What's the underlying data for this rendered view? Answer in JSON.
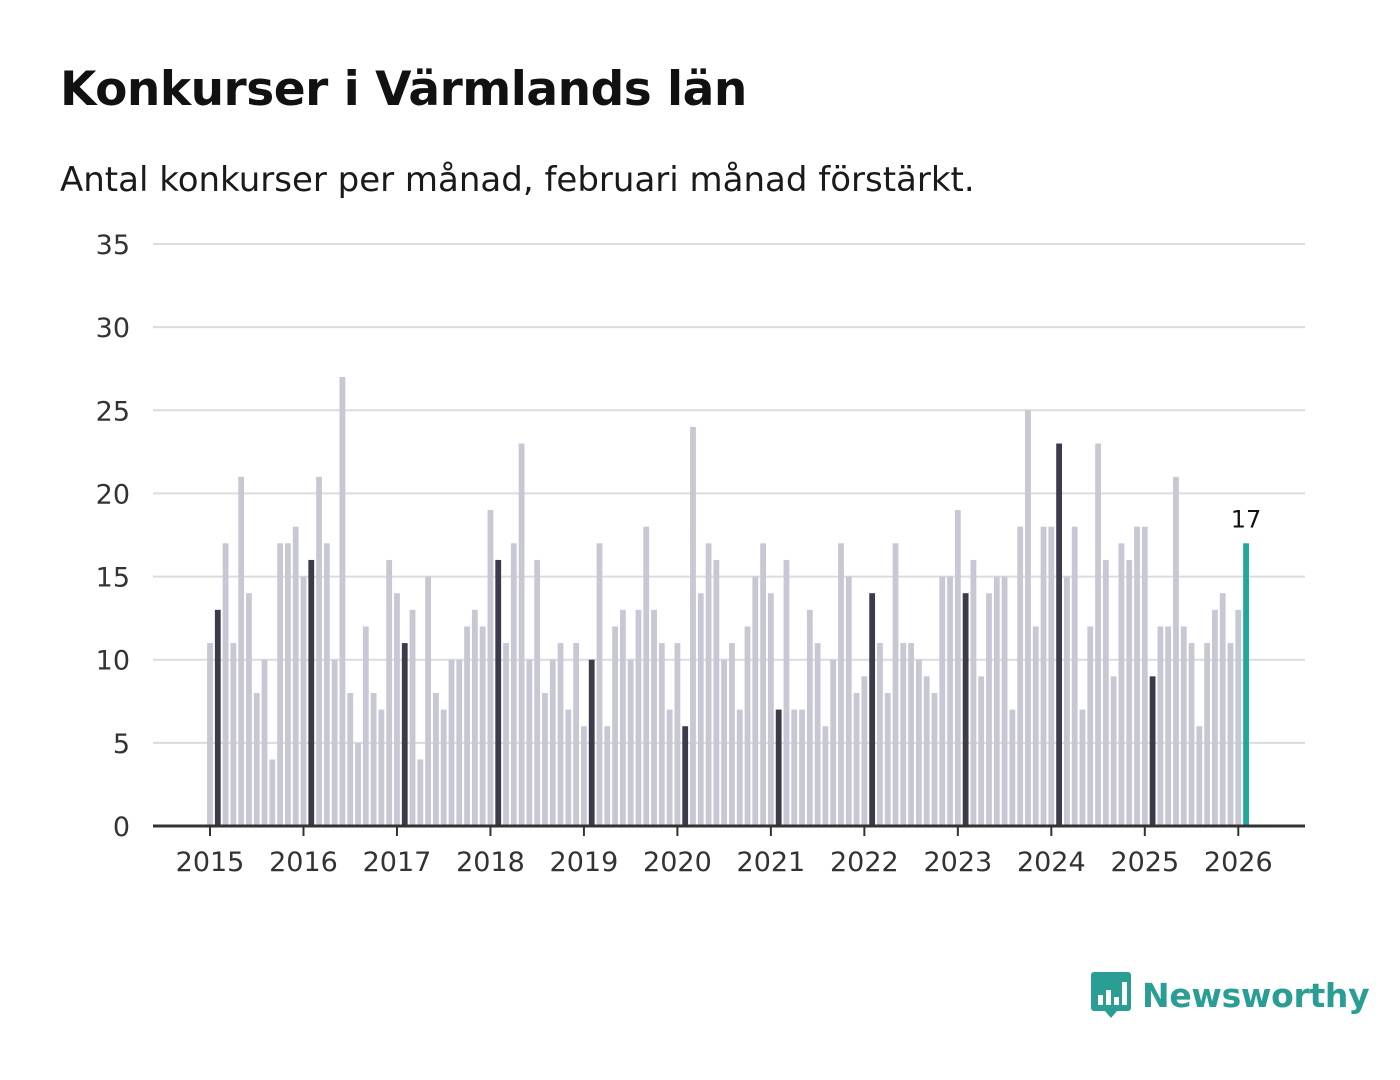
{
  "colors": {
    "bar_default": "#c8c7d4",
    "bar_highlight": "#3c3b4c",
    "bar_latest": "#20a89c",
    "grid": "#dcdcdc",
    "axis": "#333333",
    "brand": "#2a9d94"
  },
  "brand": {
    "name": "Newsworthy",
    "icon": "bar-chart-speech-bubble-icon"
  },
  "chart_data": {
    "type": "bar",
    "title": "Konkurser i Värmlands län",
    "subtitle": "Antal konkurser per månad, februari månad förstärkt.",
    "xlabel": "",
    "ylabel": "",
    "ylim": [
      0,
      35
    ],
    "yticks": [
      0,
      5,
      10,
      15,
      20,
      25,
      30,
      35
    ],
    "grid": true,
    "start": "2015-01",
    "highlight_month": 2,
    "year_labels": [
      "2015",
      "2016",
      "2017",
      "2018",
      "2019",
      "2020",
      "2021",
      "2022",
      "2023",
      "2024",
      "2025",
      "2026"
    ],
    "values": [
      11,
      13,
      17,
      11,
      21,
      14,
      8,
      10,
      4,
      17,
      17,
      18,
      15,
      16,
      21,
      17,
      10,
      27,
      8,
      5,
      12,
      8,
      7,
      16,
      14,
      11,
      13,
      4,
      15,
      8,
      7,
      10,
      10,
      12,
      13,
      12,
      19,
      16,
      11,
      17,
      23,
      10,
      16,
      8,
      10,
      11,
      7,
      11,
      6,
      10,
      17,
      6,
      12,
      13,
      10,
      13,
      18,
      13,
      11,
      7,
      11,
      6,
      24,
      14,
      17,
      16,
      10,
      11,
      7,
      12,
      15,
      17,
      14,
      7,
      16,
      7,
      7,
      13,
      11,
      6,
      10,
      17,
      15,
      8,
      9,
      14,
      11,
      8,
      17,
      11,
      11,
      10,
      9,
      8,
      15,
      15,
      19,
      14,
      16,
      9,
      14,
      15,
      15,
      7,
      18,
      25,
      12,
      18,
      18,
      23,
      15,
      18,
      7,
      12,
      23,
      16,
      9,
      17,
      16,
      18,
      18,
      9,
      12,
      12,
      21,
      12,
      11,
      6,
      11,
      13,
      14,
      11,
      13,
      17
    ],
    "latest_label": "17"
  }
}
